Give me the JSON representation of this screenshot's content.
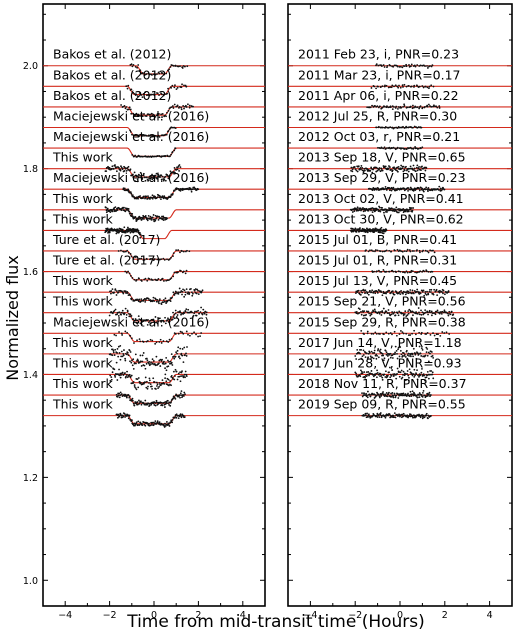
{
  "chart_data": {
    "type": "scatter",
    "ylabel": "Normalized flux",
    "xlabel": "Time from mid-transit time (Hours)",
    "ylim": [
      0.95,
      2.12
    ],
    "xlim": [
      -5,
      5
    ],
    "xticks": [
      -4,
      -2,
      0,
      2,
      4
    ],
    "yticks": [
      1.0,
      1.2,
      1.4,
      1.6,
      1.8,
      2.0
    ],
    "transit_depth": 0.016,
    "left_panel": [
      {
        "label": "Bakos et al. (2012)",
        "offset": 2.0,
        "t_start": -0.8,
        "t_end": 0.8,
        "data_range": [
          -1.1,
          1.5
        ],
        "density": "sparse",
        "noise": 0.004
      },
      {
        "label": "Bakos et al. (2012)",
        "offset": 1.96,
        "t_start": -1.2,
        "t_end": 0.8,
        "data_range": [
          -1.3,
          1.5
        ],
        "density": "sparse",
        "noise": 0.004
      },
      {
        "label": "Bakos et al. (2012)",
        "offset": 1.92,
        "t_start": -1.2,
        "t_end": 0.8,
        "data_range": [
          -1.5,
          1.8
        ],
        "density": "medium",
        "noise": 0.004
      },
      {
        "label": "Maciejewski et al. (2016)",
        "offset": 1.88,
        "t_start": -1.2,
        "t_end": 0.8,
        "data_range": [
          -1.1,
          1.0
        ],
        "density": "sparse",
        "noise": 0.002
      },
      {
        "label": "Maciejewski et al. (2016)",
        "offset": 1.84,
        "t_start": -1.2,
        "t_end": 1.0,
        "data_range": [
          -1.0,
          1.0
        ],
        "density": "sparse",
        "noise": 0.002
      },
      {
        "label": "This work",
        "offset": 1.8,
        "t_start": -1.2,
        "t_end": 1.0,
        "data_range": [
          -2.2,
          1.2
        ],
        "density": "dense",
        "noise": 0.007
      },
      {
        "label": "Maciejewski et al. (2016)",
        "offset": 1.76,
        "t_start": -1.2,
        "t_end": 1.0,
        "data_range": [
          -1.4,
          2.0
        ],
        "density": "dense",
        "noise": 0.004
      },
      {
        "label": "This work",
        "offset": 1.72,
        "t_start": -1.2,
        "t_end": 1.0,
        "data_range": [
          -2.2,
          0.6
        ],
        "density": "dense",
        "noise": 0.005
      },
      {
        "label": "This work",
        "offset": 1.68,
        "t_start": -0.8,
        "t_end": 0.8,
        "data_range": [
          -2.2,
          -0.6
        ],
        "density": "dense",
        "noise": 0.005
      },
      {
        "label": "Ture et al. (2017)",
        "offset": 1.64,
        "t_start": -1.2,
        "t_end": 1.0,
        "data_range": [
          -1.6,
          1.6
        ],
        "density": "sparse",
        "noise": 0.003
      },
      {
        "label": "Ture et al. (2017)",
        "offset": 1.6,
        "t_start": -1.2,
        "t_end": 1.0,
        "data_range": [
          -1.3,
          1.5
        ],
        "density": "sparse",
        "noise": 0.003
      },
      {
        "label": "This work",
        "offset": 1.56,
        "t_start": -1.2,
        "t_end": 1.0,
        "data_range": [
          -2.0,
          2.2
        ],
        "density": "dense",
        "noise": 0.006
      },
      {
        "label": "This work",
        "offset": 1.52,
        "t_start": -1.2,
        "t_end": 1.0,
        "data_range": [
          -2.0,
          2.4
        ],
        "density": "dense",
        "noise": 0.007
      },
      {
        "label": "Maciejewski et al. (2016)",
        "offset": 1.48,
        "t_start": -1.2,
        "t_end": 1.0,
        "data_range": [
          -1.8,
          2.2
        ],
        "density": "sparse",
        "noise": 0.005
      },
      {
        "label": "This work",
        "offset": 1.44,
        "t_start": -1.2,
        "t_end": 1.0,
        "data_range": [
          -2.0,
          1.5
        ],
        "density": "dense",
        "noise": 0.014
      },
      {
        "label": "This work",
        "offset": 1.4,
        "t_start": -1.2,
        "t_end": 1.0,
        "data_range": [
          -2.0,
          1.5
        ],
        "density": "dense",
        "noise": 0.012
      },
      {
        "label": "This work",
        "offset": 1.36,
        "t_start": -1.2,
        "t_end": 1.0,
        "data_range": [
          -1.7,
          1.4
        ],
        "density": "dense",
        "noise": 0.006
      },
      {
        "label": "This work",
        "offset": 1.32,
        "t_start": -1.2,
        "t_end": 1.0,
        "data_range": [
          -1.7,
          1.4
        ],
        "density": "dense",
        "noise": 0.005
      }
    ],
    "right_panel": [
      {
        "label": "2011 Feb 23, i, PNR=0.23"
      },
      {
        "label": "2011 Mar 23, i, PNR=0.17"
      },
      {
        "label": "2011 Apr 06, i, PNR=0.22"
      },
      {
        "label": "2012 Jul 25, R, PNR=0.30"
      },
      {
        "label": "2012 Oct 03, r, PNR=0.21"
      },
      {
        "label": "2013 Sep 18, V, PNR=0.65"
      },
      {
        "label": "2013 Sep 29, V, PNR=0.23"
      },
      {
        "label": "2013 Oct 02, V, PNR=0.41"
      },
      {
        "label": "2013 Oct 30, V, PNR=0.62"
      },
      {
        "label": "2015 Jul 01, B, PNR=0.41"
      },
      {
        "label": "2015 Jul 01, R, PNR=0.31"
      },
      {
        "label": "2015 Jul 13, V, PNR=0.45"
      },
      {
        "label": "2015 Sep 21, V, PNR=0.56"
      },
      {
        "label": "2015 Sep 29, R, PNR=0.38"
      },
      {
        "label": "2017 Jun 14, V, PNR=1.18"
      },
      {
        "label": "2017 Jun 28, V, PNR=0.93"
      },
      {
        "label": "2018 Nov 11, R, PNR=0.37"
      },
      {
        "label": "2019 Sep 09, R, PNR=0.55"
      }
    ],
    "colors": {
      "model": "#d42a1c",
      "points": "#111111"
    }
  }
}
